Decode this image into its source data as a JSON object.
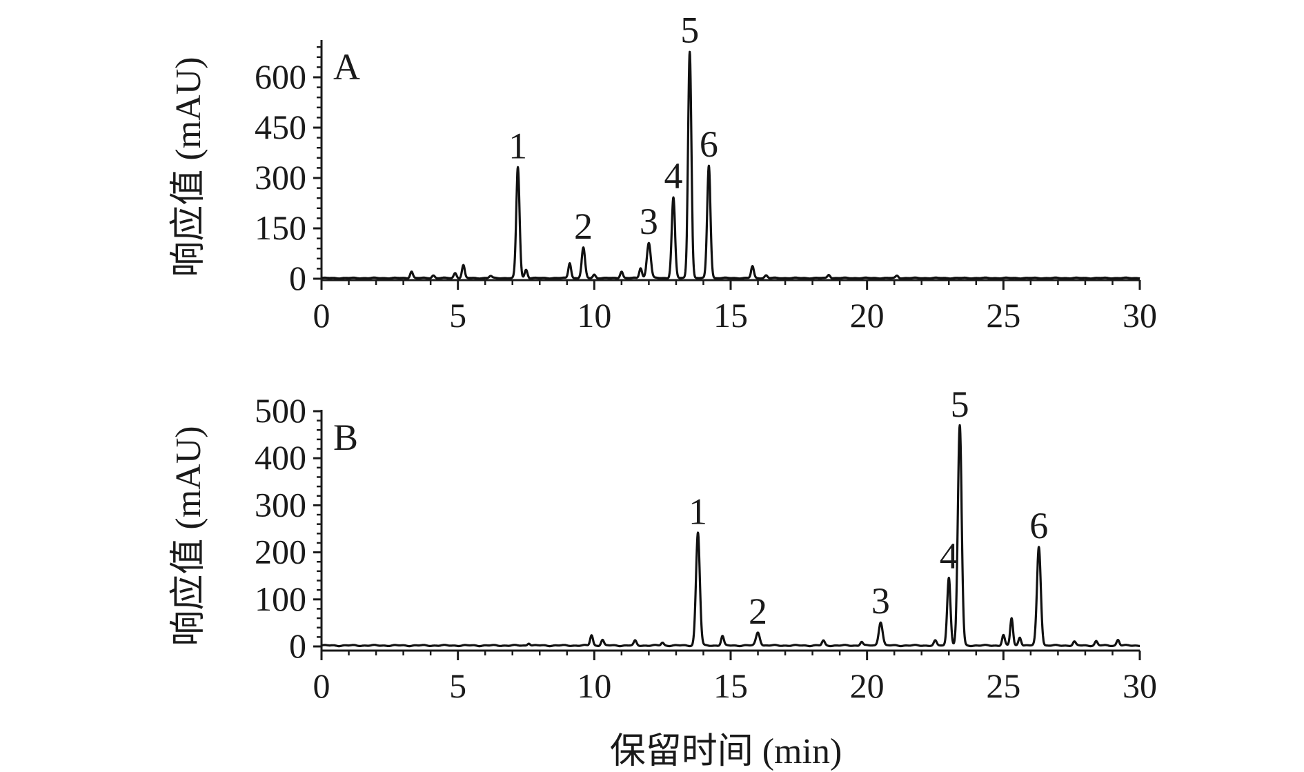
{
  "chart_data": [
    {
      "type": "line",
      "panel_label": "A",
      "xlabel": "",
      "ylabel": "响应值 (mAU)",
      "xlim": [
        0,
        30
      ],
      "ylim": [
        0,
        680
      ],
      "x_ticks": [
        0,
        5,
        10,
        15,
        20,
        25,
        30
      ],
      "y_ticks": [
        0,
        150,
        300,
        450,
        600
      ],
      "baseline": 2,
      "peaks": [
        {
          "label": "1",
          "rt": 7.2,
          "height": 330,
          "width": 0.06
        },
        {
          "label": "2",
          "rt": 9.6,
          "height": 90,
          "width": 0.06
        },
        {
          "label": "3",
          "rt": 12.0,
          "height": 105,
          "width": 0.07
        },
        {
          "label": "4",
          "rt": 12.9,
          "height": 240,
          "width": 0.06
        },
        {
          "label": "5",
          "rt": 13.5,
          "height": 675,
          "width": 0.06
        },
        {
          "label": "6",
          "rt": 14.2,
          "height": 335,
          "width": 0.06
        }
      ],
      "minor_peaks": [
        {
          "rt": 3.3,
          "height": 20
        },
        {
          "rt": 4.1,
          "height": 8
        },
        {
          "rt": 4.9,
          "height": 15
        },
        {
          "rt": 5.2,
          "height": 38
        },
        {
          "rt": 6.2,
          "height": 6
        },
        {
          "rt": 7.5,
          "height": 25
        },
        {
          "rt": 9.1,
          "height": 45
        },
        {
          "rt": 10.0,
          "height": 10
        },
        {
          "rt": 11.0,
          "height": 20
        },
        {
          "rt": 11.7,
          "height": 30
        },
        {
          "rt": 15.8,
          "height": 35
        },
        {
          "rt": 16.3,
          "height": 8
        },
        {
          "rt": 18.6,
          "height": 10
        },
        {
          "rt": 21.1,
          "height": 7
        }
      ]
    },
    {
      "type": "line",
      "panel_label": "B",
      "xlabel": "保留时间 (min)",
      "ylabel": "响应值 (mAU)",
      "xlim": [
        0,
        30
      ],
      "ylim": [
        0,
        500
      ],
      "x_ticks": [
        0,
        5,
        10,
        15,
        20,
        25,
        30
      ],
      "y_ticks": [
        0,
        100,
        200,
        300,
        400,
        500
      ],
      "baseline": 2,
      "peaks": [
        {
          "label": "1",
          "rt": 13.8,
          "height": 240,
          "width": 0.07
        },
        {
          "label": "2",
          "rt": 16.0,
          "height": 28,
          "width": 0.07
        },
        {
          "label": "3",
          "rt": 20.5,
          "height": 50,
          "width": 0.07
        },
        {
          "label": "4",
          "rt": 23.0,
          "height": 145,
          "width": 0.06
        },
        {
          "label": "5",
          "rt": 23.4,
          "height": 468,
          "width": 0.07
        },
        {
          "label": "6",
          "rt": 26.3,
          "height": 210,
          "width": 0.07
        }
      ],
      "minor_peaks": [
        {
          "rt": 7.6,
          "height": 5
        },
        {
          "rt": 9.9,
          "height": 22
        },
        {
          "rt": 10.3,
          "height": 12
        },
        {
          "rt": 11.5,
          "height": 10
        },
        {
          "rt": 12.5,
          "height": 6
        },
        {
          "rt": 14.7,
          "height": 20
        },
        {
          "rt": 18.4,
          "height": 10
        },
        {
          "rt": 19.8,
          "height": 8
        },
        {
          "rt": 22.5,
          "height": 10
        },
        {
          "rt": 25.0,
          "height": 22
        },
        {
          "rt": 25.3,
          "height": 58
        },
        {
          "rt": 25.6,
          "height": 18
        },
        {
          "rt": 27.6,
          "height": 8
        },
        {
          "rt": 28.4,
          "height": 9
        },
        {
          "rt": 29.2,
          "height": 12
        }
      ]
    }
  ]
}
